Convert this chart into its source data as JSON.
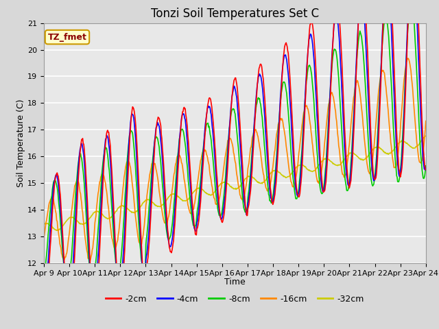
{
  "title": "Tonzi Soil Temperatures Set C",
  "xlabel": "Time",
  "ylabel": "Soil Temperature (C)",
  "ylim": [
    12.0,
    21.0
  ],
  "yticks": [
    12.0,
    13.0,
    14.0,
    15.0,
    16.0,
    17.0,
    18.0,
    19.0,
    20.0,
    21.0
  ],
  "x_tick_labels": [
    "Apr 9",
    "Apr 10",
    "Apr 11",
    "Apr 12",
    "Apr 13",
    "Apr 14",
    "Apr 15",
    "Apr 16",
    "Apr 17",
    "Apr 18",
    "Apr 19",
    "Apr 20",
    "Apr 21",
    "Apr 22",
    "Apr 23",
    "Apr 24"
  ],
  "legend_label": "TZ_fmet",
  "legend_box_color": "#ffffcc",
  "legend_box_edge": "#cc9900",
  "legend_text_color": "#8B0000",
  "series_labels": [
    "-2cm",
    "-4cm",
    "-8cm",
    "-16cm",
    "-32cm"
  ],
  "series_colors": [
    "#ff0000",
    "#0000ff",
    "#00cc00",
    "#ff8800",
    "#cccc00"
  ],
  "line_width": 1.2,
  "background_color": "#d8d8d8",
  "plot_bg_color": "#e8e8e8",
  "grid_color": "#ffffff",
  "title_fontsize": 12,
  "axis_fontsize": 9,
  "tick_fontsize": 8
}
